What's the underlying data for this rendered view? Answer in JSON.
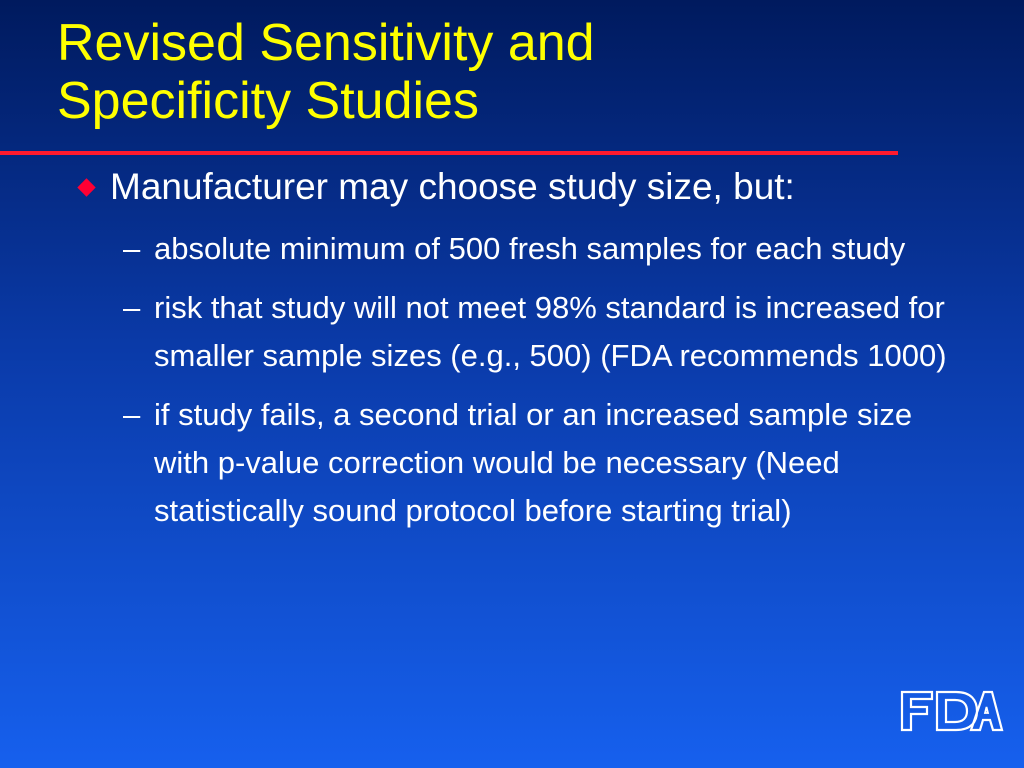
{
  "slide": {
    "title_lines": [
      "Revised Sensitivity and",
      "Specificity Studies"
    ],
    "main_bullet": "Manufacturer may choose study size, but:",
    "sub_bullets": [
      "absolute minimum of 500 fresh samples for each study",
      "risk that study will not meet 98% standard is increased for smaller sample sizes (e.g., 500) (FDA recommends 1000)",
      "if study fails, a second trial or an increased sample size with p-value correction would be necessary (Need statistically sound protocol before starting trial)"
    ],
    "dash_glyph": "–",
    "logo_text": "FDA"
  },
  "colors": {
    "background_top": "#001a5e",
    "background_bottom": "#1660ee",
    "title": "#ffff00",
    "rule": "#ff1a2e",
    "bullet_marker": "#ff0033",
    "body_text": "#ffffff"
  },
  "icons": {
    "main_bullet": "red-diamond-icon",
    "logo": "fda-logo-icon"
  }
}
